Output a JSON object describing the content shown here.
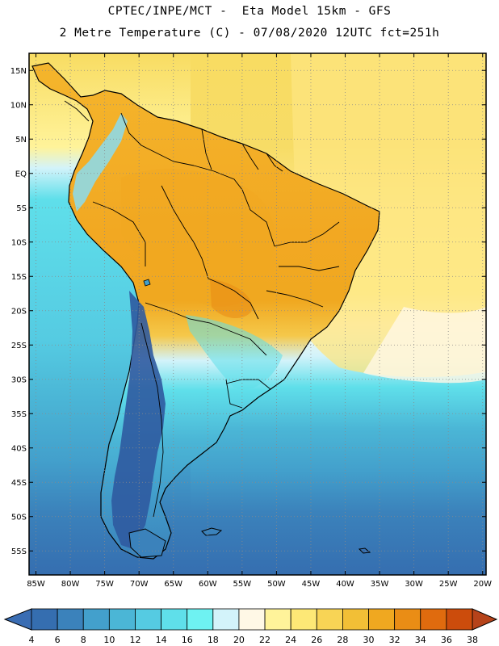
{
  "header": {
    "line1": "CPTEC/INPE/MCT -  Eta Model 15km - GFS",
    "line2": "2 Metre Temperature (C) - 07/08/2020 12UTC fct=251h"
  },
  "map": {
    "lon_min": -86,
    "lon_max": -19.5,
    "lat_min": -58.5,
    "lat_max": 17.5,
    "lat_ticks": [
      {
        "lat": 15,
        "label": "15N"
      },
      {
        "lat": 10,
        "label": "10N"
      },
      {
        "lat": 5,
        "label": "5N"
      },
      {
        "lat": 0,
        "label": "EQ"
      },
      {
        "lat": -5,
        "label": "5S"
      },
      {
        "lat": -10,
        "label": "10S"
      },
      {
        "lat": -15,
        "label": "15S"
      },
      {
        "lat": -20,
        "label": "20S"
      },
      {
        "lat": -25,
        "label": "25S"
      },
      {
        "lat": -30,
        "label": "30S"
      },
      {
        "lat": -35,
        "label": "35S"
      },
      {
        "lat": -40,
        "label": "40S"
      },
      {
        "lat": -45,
        "label": "45S"
      },
      {
        "lat": -50,
        "label": "50S"
      },
      {
        "lat": -55,
        "label": "55S"
      }
    ],
    "lon_ticks": [
      {
        "lon": -85,
        "label": "85W"
      },
      {
        "lon": -80,
        "label": "80W"
      },
      {
        "lon": -75,
        "label": "75W"
      },
      {
        "lon": -70,
        "label": "70W"
      },
      {
        "lon": -65,
        "label": "65W"
      },
      {
        "lon": -60,
        "label": "60W"
      },
      {
        "lon": -55,
        "label": "55W"
      },
      {
        "lon": -50,
        "label": "50W"
      },
      {
        "lon": -45,
        "label": "45W"
      },
      {
        "lon": -40,
        "label": "40W"
      },
      {
        "lon": -35,
        "label": "35W"
      },
      {
        "lon": -30,
        "label": "30W"
      },
      {
        "lon": -25,
        "label": "25W"
      },
      {
        "lon": -20,
        "label": "20W"
      }
    ]
  },
  "colorbar": {
    "labels": [
      "4",
      "6",
      "8",
      "10",
      "12",
      "14",
      "16",
      "18",
      "20",
      "22",
      "24",
      "26",
      "28",
      "30",
      "32",
      "34",
      "36",
      "38"
    ],
    "low_color": "#3a6db3",
    "high_color": "#b6431a",
    "colors": [
      "#356eb0",
      "#3b82bb",
      "#43a0cc",
      "#4bb6d6",
      "#55cbe2",
      "#5fdfea",
      "#6ef2f2",
      "#d3f3fa",
      "#fff8e6",
      "#fff39a",
      "#fde876",
      "#f8d455",
      "#f2bf36",
      "#f0a820",
      "#ea8d15",
      "#e06b0e",
      "#cc4c0c"
    ]
  },
  "colors": {
    "ocean_north": "#f8dc62",
    "ocean_mid": "#fff39a",
    "ocean_south": "#356eb0",
    "land_hot": "#f2a822",
    "andes": "#2f5aa0"
  }
}
